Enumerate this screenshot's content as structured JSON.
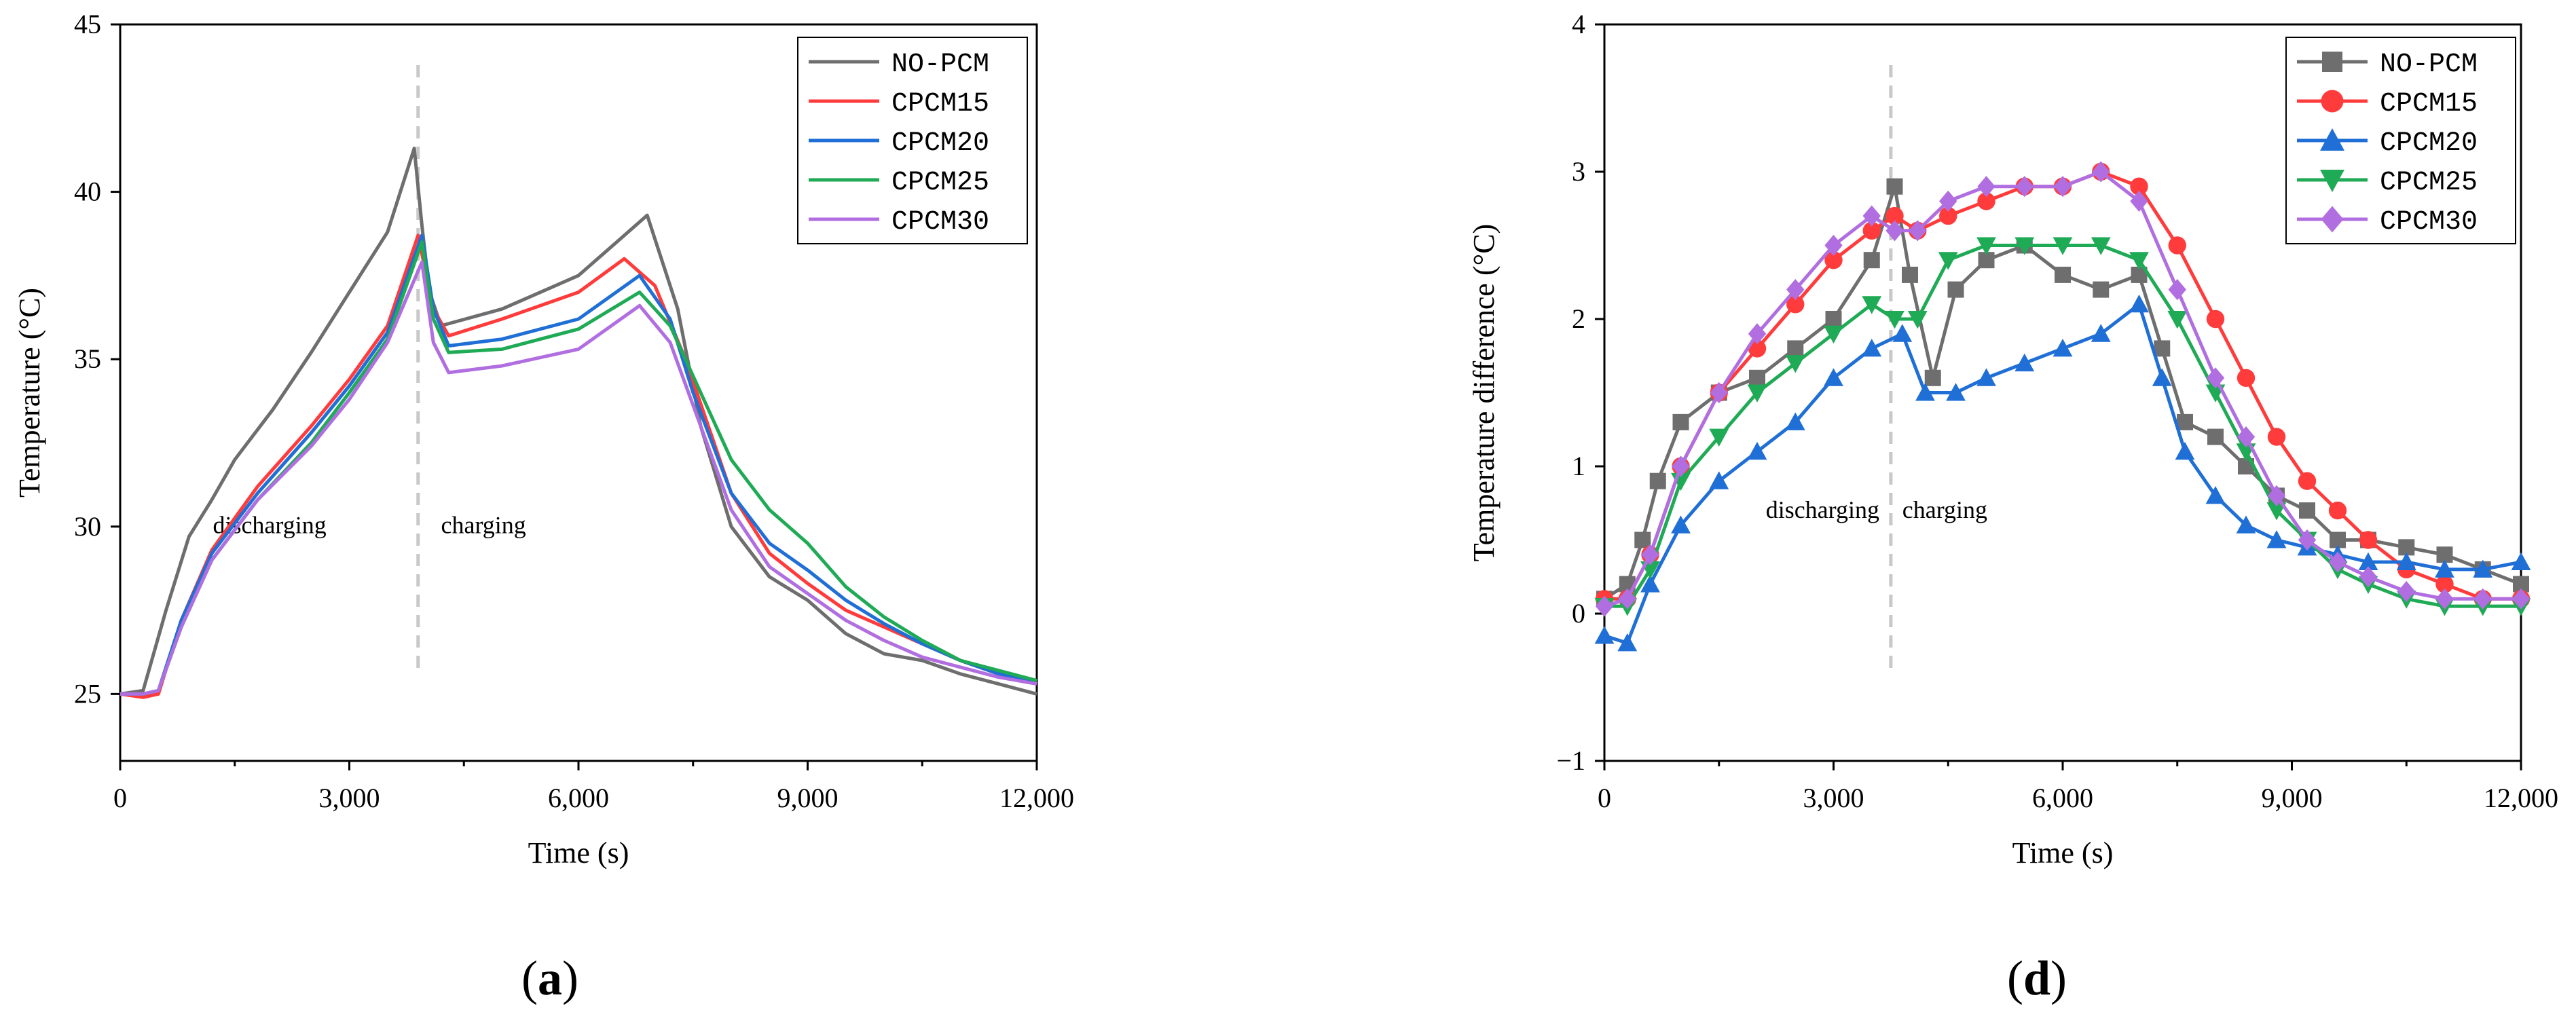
{
  "chart_data": [
    {
      "type": "line",
      "panel_label": "(a)",
      "xlabel": "Time (s)",
      "ylabel": "Temperature (°C)",
      "xlim": [
        0,
        12000
      ],
      "ylim": [
        23,
        45
      ],
      "xticks": [
        0,
        3000,
        6000,
        9000,
        12000
      ],
      "xtick_labels": [
        "0",
        "3,000",
        "6,000",
        "9,000",
        "12,000"
      ],
      "yticks": [
        25,
        30,
        35,
        40,
        45
      ],
      "ytick_labels": [
        "25",
        "30",
        "35",
        "40",
        "45"
      ],
      "grid": false,
      "legend_position": "top-right",
      "divider_x": 3900,
      "annotations": [
        {
          "text": "discharging",
          "x": 2700,
          "y": 29.8
        },
        {
          "text": "charging",
          "x": 4200,
          "y": 29.8
        }
      ],
      "series": [
        {
          "name": "NO-PCM",
          "color": "#6e6e6e",
          "x": [
            0,
            300,
            600,
            900,
            1200,
            1500,
            2000,
            2500,
            3000,
            3500,
            3850,
            3950,
            4050,
            4200,
            5000,
            6000,
            6500,
            6900,
            7300,
            7600,
            8000,
            8500,
            9000,
            9500,
            10000,
            10500,
            11000,
            11500,
            12000
          ],
          "y": [
            25,
            25.1,
            27.5,
            29.7,
            30.8,
            32,
            33.5,
            35.2,
            37,
            38.8,
            41.3,
            39,
            37,
            36,
            36.5,
            37.5,
            38.5,
            39.3,
            36.5,
            33,
            30,
            28.5,
            27.8,
            26.8,
            26.2,
            26,
            25.6,
            25.3,
            25
          ]
        },
        {
          "name": "CPCM15",
          "color": "#ff3b3b",
          "x": [
            0,
            300,
            500,
            800,
            1200,
            1800,
            2500,
            3000,
            3500,
            3900,
            4100,
            4300,
            5000,
            6000,
            6600,
            7000,
            7400,
            8000,
            8500,
            9000,
            9500,
            10000,
            10500,
            11000,
            11500,
            12000
          ],
          "y": [
            25,
            24.9,
            25,
            27.2,
            29.3,
            31.2,
            33,
            34.4,
            36,
            38.7,
            36.5,
            35.7,
            36.2,
            37,
            38,
            37.2,
            35,
            31,
            29.2,
            28.3,
            27.5,
            27,
            26.5,
            26,
            25.6,
            25.4
          ]
        },
        {
          "name": "CPCM20",
          "color": "#1f6fd6",
          "x": [
            0,
            300,
            500,
            800,
            1200,
            1800,
            2500,
            3000,
            3500,
            3950,
            4100,
            4300,
            5000,
            6000,
            6800,
            7200,
            7500,
            8000,
            8500,
            9000,
            9500,
            10000,
            10500,
            11000,
            11500,
            12000
          ],
          "y": [
            25,
            25,
            25.1,
            27.2,
            29.2,
            31,
            32.8,
            34.2,
            35.8,
            38.7,
            36.5,
            35.4,
            35.6,
            36.2,
            37.5,
            36.2,
            34,
            31,
            29.5,
            28.7,
            27.8,
            27.1,
            26.5,
            26,
            25.6,
            25.3
          ]
        },
        {
          "name": "CPCM25",
          "color": "#1faa55",
          "x": [
            0,
            300,
            500,
            800,
            1200,
            1800,
            2500,
            3000,
            3500,
            3950,
            4100,
            4300,
            5000,
            6000,
            6800,
            7200,
            7600,
            8000,
            8500,
            9000,
            9500,
            10000,
            10500,
            11000,
            11500,
            12000
          ],
          "y": [
            25,
            25,
            25.1,
            27,
            29,
            30.8,
            32.5,
            34,
            35.6,
            38.5,
            36.2,
            35.2,
            35.3,
            35.9,
            37,
            36,
            34,
            32,
            30.5,
            29.5,
            28.2,
            27.3,
            26.6,
            26,
            25.7,
            25.4
          ]
        },
        {
          "name": "CPCM30",
          "color": "#b06ee0",
          "x": [
            0,
            300,
            500,
            800,
            1200,
            1800,
            2500,
            3000,
            3500,
            3950,
            4100,
            4300,
            5000,
            6000,
            6800,
            7200,
            7600,
            8000,
            8500,
            9000,
            9500,
            10000,
            10500,
            11000,
            11500,
            12000
          ],
          "y": [
            25,
            25,
            25.1,
            27,
            29,
            30.8,
            32.4,
            33.8,
            35.5,
            37.9,
            35.5,
            34.6,
            34.8,
            35.3,
            36.6,
            35.5,
            33,
            30.5,
            28.8,
            28,
            27.2,
            26.6,
            26.1,
            25.8,
            25.5,
            25.3
          ]
        }
      ]
    },
    {
      "type": "line",
      "panel_label": "(d)",
      "xlabel": "Time (s)",
      "ylabel": "Temperature difference (°C)",
      "xlim": [
        0,
        12000
      ],
      "ylim": [
        -1,
        4
      ],
      "xticks": [
        0,
        3000,
        6000,
        9000,
        12000
      ],
      "xtick_labels": [
        "0",
        "3,000",
        "6,000",
        "9,000",
        "12,000"
      ],
      "yticks": [
        -1,
        0,
        1,
        2,
        3,
        4
      ],
      "ytick_labels": [
        "−1",
        "0",
        "1",
        "2",
        "3",
        "4"
      ],
      "grid": false,
      "legend_position": "top-right",
      "divider_x": 3750,
      "annotations": [
        {
          "text": "discharging",
          "x": 3600,
          "y": 0.65
        },
        {
          "text": "charging",
          "x": 3900,
          "y": 0.65
        }
      ],
      "series": [
        {
          "name": "NO-PCM",
          "color": "#6e6e6e",
          "marker": "square",
          "x": [
            0,
            300,
            500,
            700,
            1000,
            1500,
            2000,
            2500,
            3000,
            3500,
            3800,
            4000,
            4300,
            4600,
            5000,
            5500,
            6000,
            6500,
            7000,
            7300,
            7600,
            8000,
            8400,
            8800,
            9200,
            9600,
            10000,
            10500,
            11000,
            11500,
            12000
          ],
          "y": [
            0.1,
            0.2,
            0.5,
            0.9,
            1.3,
            1.5,
            1.6,
            1.8,
            2.0,
            2.4,
            2.9,
            2.3,
            1.6,
            2.2,
            2.4,
            2.5,
            2.3,
            2.2,
            2.3,
            1.8,
            1.3,
            1.2,
            1.0,
            0.8,
            0.7,
            0.5,
            0.5,
            0.45,
            0.4,
            0.3,
            0.2
          ]
        },
        {
          "name": "CPCM15",
          "color": "#ff3b3b",
          "marker": "circle",
          "x": [
            0,
            300,
            600,
            1000,
            1500,
            2000,
            2500,
            3000,
            3500,
            3800,
            4100,
            4500,
            5000,
            5500,
            6000,
            6500,
            7000,
            7500,
            8000,
            8400,
            8800,
            9200,
            9600,
            10000,
            10500,
            11000,
            11500,
            12000
          ],
          "y": [
            0.1,
            0.1,
            0.4,
            1.0,
            1.5,
            1.8,
            2.1,
            2.4,
            2.6,
            2.7,
            2.6,
            2.7,
            2.8,
            2.9,
            2.9,
            3.0,
            2.9,
            2.5,
            2.0,
            1.6,
            1.2,
            0.9,
            0.7,
            0.5,
            0.3,
            0.2,
            0.1,
            0.1
          ]
        },
        {
          "name": "CPCM20",
          "color": "#1f6fd6",
          "marker": "triangle-up",
          "x": [
            0,
            300,
            600,
            1000,
            1500,
            2000,
            2500,
            3000,
            3500,
            3900,
            4200,
            4600,
            5000,
            5500,
            6000,
            6500,
            7000,
            7300,
            7600,
            8000,
            8400,
            8800,
            9200,
            9600,
            10000,
            10500,
            11000,
            11500,
            12000
          ],
          "y": [
            -0.15,
            -0.2,
            0.2,
            0.6,
            0.9,
            1.1,
            1.3,
            1.6,
            1.8,
            1.9,
            1.5,
            1.5,
            1.6,
            1.7,
            1.8,
            1.9,
            2.1,
            1.6,
            1.1,
            0.8,
            0.6,
            0.5,
            0.45,
            0.4,
            0.35,
            0.35,
            0.3,
            0.3,
            0.35
          ]
        },
        {
          "name": "CPCM25",
          "color": "#1faa55",
          "marker": "triangle-down",
          "x": [
            0,
            300,
            600,
            1000,
            1500,
            2000,
            2500,
            3000,
            3500,
            3800,
            4100,
            4500,
            5000,
            5500,
            6000,
            6500,
            7000,
            7500,
            8000,
            8400,
            8800,
            9200,
            9600,
            10000,
            10500,
            11000,
            11500,
            12000
          ],
          "y": [
            0.05,
            0.05,
            0.3,
            0.9,
            1.2,
            1.5,
            1.7,
            1.9,
            2.1,
            2.0,
            2.0,
            2.4,
            2.5,
            2.5,
            2.5,
            2.5,
            2.4,
            2.0,
            1.5,
            1.1,
            0.7,
            0.5,
            0.3,
            0.2,
            0.1,
            0.05,
            0.05,
            0.05
          ]
        },
        {
          "name": "CPCM30",
          "color": "#b06ee0",
          "marker": "diamond",
          "x": [
            0,
            300,
            600,
            1000,
            1500,
            2000,
            2500,
            3000,
            3500,
            3800,
            4100,
            4500,
            5000,
            5500,
            6000,
            6500,
            7000,
            7500,
            8000,
            8400,
            8800,
            9200,
            9600,
            10000,
            10500,
            11000,
            11500,
            12000
          ],
          "y": [
            0.05,
            0.1,
            0.4,
            1.0,
            1.5,
            1.9,
            2.2,
            2.5,
            2.7,
            2.6,
            2.6,
            2.8,
            2.9,
            2.9,
            2.9,
            3.0,
            2.8,
            2.2,
            1.6,
            1.2,
            0.8,
            0.5,
            0.35,
            0.25,
            0.15,
            0.1,
            0.1,
            0.1
          ]
        }
      ]
    }
  ]
}
